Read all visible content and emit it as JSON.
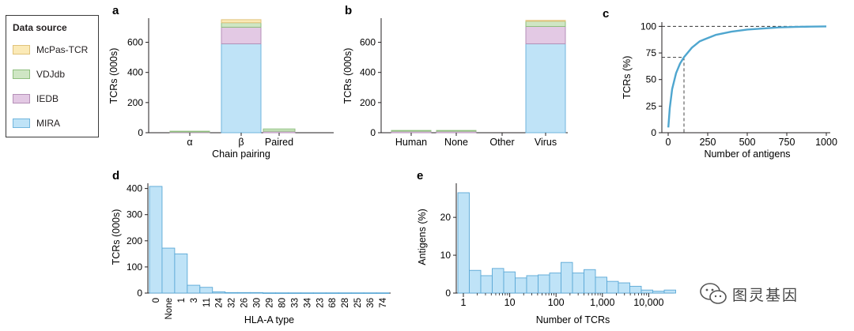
{
  "legend": {
    "title": "Data source",
    "items": [
      {
        "label": "McPas-TCR",
        "fill": "#fbeab7",
        "stroke": "#e0c27a"
      },
      {
        "label": "VDJdb",
        "fill": "#cfe6c4",
        "stroke": "#8fbf7e"
      },
      {
        "label": "IEDB",
        "fill": "#e3c9e4",
        "stroke": "#b590b8"
      },
      {
        "label": "MIRA",
        "fill": "#bfe3f7",
        "stroke": "#72b6dd"
      }
    ]
  },
  "watermark": {
    "text": "图灵基因",
    "icon": "wechat-icon"
  },
  "chart_data": [
    {
      "panel": "a",
      "type": "bar",
      "stacked": true,
      "ylabel": "TCRs (000s)",
      "xlabel": "Chain pairing",
      "ylim": [
        0,
        760
      ],
      "yticks": [
        0,
        200,
        400,
        600
      ],
      "categories": [
        "α",
        "β",
        "Paired"
      ],
      "series": [
        {
          "name": "MIRA",
          "values": [
            0,
            590,
            0
          ]
        },
        {
          "name": "IEDB",
          "values": [
            5,
            110,
            10
          ]
        },
        {
          "name": "VDJdb",
          "values": [
            5,
            30,
            15
          ]
        },
        {
          "name": "McPas-TCR",
          "values": [
            0,
            20,
            0
          ]
        }
      ]
    },
    {
      "panel": "b",
      "type": "bar",
      "stacked": true,
      "ylabel": "TCRs (000s)",
      "xlabel": "",
      "ylim": [
        0,
        760
      ],
      "yticks": [
        0,
        200,
        400,
        600
      ],
      "categories": [
        "Human",
        "None",
        "Other",
        "Virus"
      ],
      "series": [
        {
          "name": "MIRA",
          "values": [
            0,
            0,
            0,
            590
          ]
        },
        {
          "name": "IEDB",
          "values": [
            10,
            10,
            0,
            115
          ]
        },
        {
          "name": "VDJdb",
          "values": [
            5,
            5,
            0,
            35
          ]
        },
        {
          "name": "McPas-TCR",
          "values": [
            0,
            0,
            0,
            5
          ]
        }
      ]
    },
    {
      "panel": "c",
      "type": "line",
      "ylabel": "TCRs (%)",
      "xlabel": "Number of antigens",
      "xlim": [
        -20,
        1060
      ],
      "ylim": [
        0,
        104
      ],
      "xticks": [
        0,
        250,
        500,
        750,
        1000
      ],
      "yticks": [
        0,
        25,
        50,
        75,
        100
      ],
      "x": [
        1,
        10,
        25,
        50,
        75,
        100,
        150,
        200,
        300,
        400,
        500,
        600,
        700,
        800,
        900,
        1000
      ],
      "y": [
        5,
        23,
        41,
        56,
        65,
        71,
        80,
        86,
        92,
        95,
        97,
        98,
        99,
        99.5,
        99.8,
        100
      ],
      "reference": {
        "x": 100,
        "y": 71
      }
    },
    {
      "panel": "d",
      "type": "bar",
      "ylabel": "TCRs (000s)",
      "xlabel": "HLA-A type",
      "ylim": [
        0,
        420
      ],
      "yticks": [
        0,
        100,
        200,
        300,
        400
      ],
      "categories": [
        "0",
        "None",
        "1",
        "3",
        "11",
        "24",
        "32",
        "26",
        "30",
        "29",
        "80",
        "33",
        "34",
        "23",
        "68",
        "28",
        "25",
        "36",
        "74"
      ],
      "values": [
        408,
        172,
        150,
        30,
        22,
        5,
        2,
        2,
        2,
        1,
        1,
        1,
        1,
        1,
        1,
        1,
        1,
        1,
        1
      ]
    },
    {
      "panel": "e",
      "type": "bar",
      "ylabel": "Antigens (%)",
      "xlabel": "Number of TCRs",
      "xscale": "log",
      "ylim": [
        0,
        29
      ],
      "yticks": [
        0,
        10,
        20
      ],
      "xticks": [
        "1",
        "10",
        "100",
        "1,000",
        "10,000"
      ],
      "values": [
        26.5,
        6,
        4.6,
        6.5,
        5.6,
        4,
        4.6,
        4.8,
        5.3,
        8.1,
        5.3,
        6.2,
        4.2,
        3.1,
        2.7,
        1.8,
        0.8,
        0.5,
        0.8
      ]
    }
  ],
  "panels": {
    "a": {
      "letter": "a"
    },
    "b": {
      "letter": "b"
    },
    "c": {
      "letter": "c"
    },
    "d": {
      "letter": "d"
    },
    "e": {
      "letter": "e"
    }
  }
}
